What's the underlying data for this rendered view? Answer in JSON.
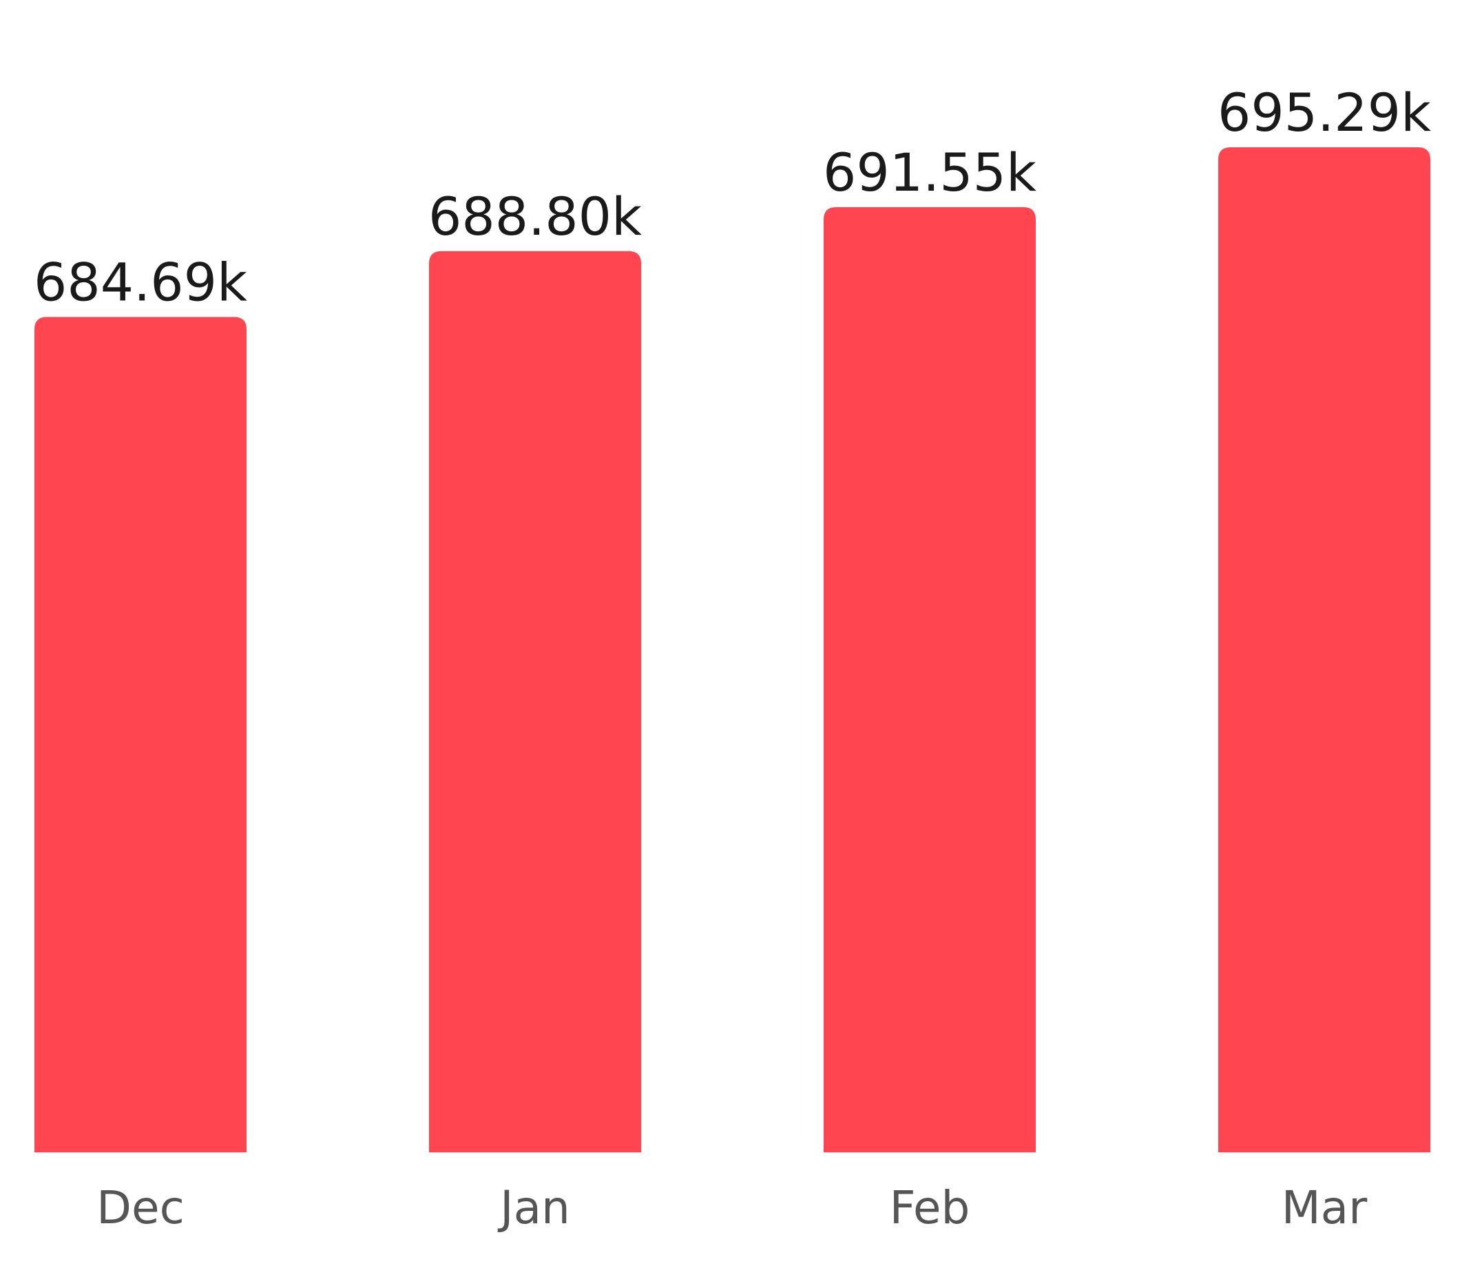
{
  "chart_data": {
    "type": "bar",
    "categories": [
      "Dec",
      "Jan",
      "Feb",
      "Mar"
    ],
    "values": [
      684.69,
      688.8,
      691.55,
      695.29
    ],
    "data_labels": [
      "684.69k",
      "688.80k",
      "691.55k",
      "695.29k"
    ],
    "unit_suffix": "k",
    "title": "",
    "xlabel": "",
    "ylabel": "",
    "ylim": [
      632.5,
      695.29
    ],
    "grid": false,
    "legend": "none",
    "colors": {
      "bar": "#ff4550",
      "data_label": "#1a1a1a",
      "tick_label": "#555555"
    }
  }
}
